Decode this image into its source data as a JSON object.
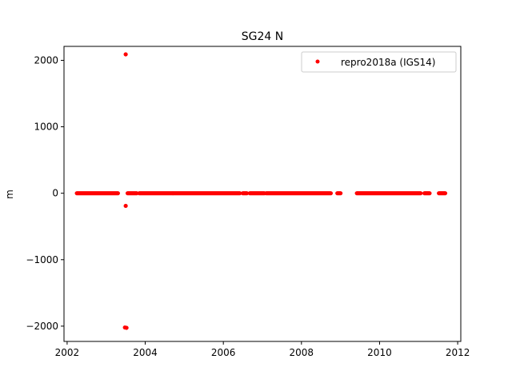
{
  "chart_data": {
    "type": "scatter",
    "title": "SG24 N",
    "xlabel": "",
    "ylabel": "m",
    "xlim": [
      2001.92,
      2012.08
    ],
    "ylim": [
      -2230,
      2210
    ],
    "x_ticks": [
      2002,
      2004,
      2006,
      2008,
      2010,
      2012
    ],
    "x_tick_labels": [
      "2002",
      "2004",
      "2006",
      "2008",
      "2010",
      "2012"
    ],
    "y_ticks": [
      2000,
      1000,
      0,
      -1000,
      -2000
    ],
    "y_tick_labels": [
      "2000",
      "1000",
      "0",
      "−1000",
      "−2000"
    ],
    "grid": false,
    "legend_position": "top-right",
    "series": [
      {
        "name": "repro2018a (IGS14)",
        "color": "#ff0000",
        "marker": "circle",
        "runs": [
          {
            "x_start": 2002.25,
            "x_end": 2003.3,
            "y": 0
          },
          {
            "x_start": 2003.55,
            "x_end": 2003.78,
            "y": 0
          },
          {
            "x_start": 2003.85,
            "x_end": 2004.7,
            "y": 0
          },
          {
            "x_start": 2004.72,
            "x_end": 2006.42,
            "y": 0
          },
          {
            "x_start": 2006.5,
            "x_end": 2006.6,
            "y": 0
          },
          {
            "x_start": 2006.68,
            "x_end": 2007.05,
            "y": 0
          },
          {
            "x_start": 2007.1,
            "x_end": 2008.75,
            "y": 0
          },
          {
            "x_start": 2008.92,
            "x_end": 2009.0,
            "y": 0
          },
          {
            "x_start": 2009.42,
            "x_end": 2011.05,
            "y": 0
          },
          {
            "x_start": 2011.15,
            "x_end": 2011.28,
            "y": 0
          },
          {
            "x_start": 2011.52,
            "x_end": 2011.68,
            "y": 0
          }
        ],
        "points": [
          {
            "x": 2003.5,
            "y": 2090
          },
          {
            "x": 2003.5,
            "y": -190
          },
          {
            "x": 2003.48,
            "y": -2020
          },
          {
            "x": 2003.52,
            "y": -2025
          }
        ]
      }
    ]
  }
}
